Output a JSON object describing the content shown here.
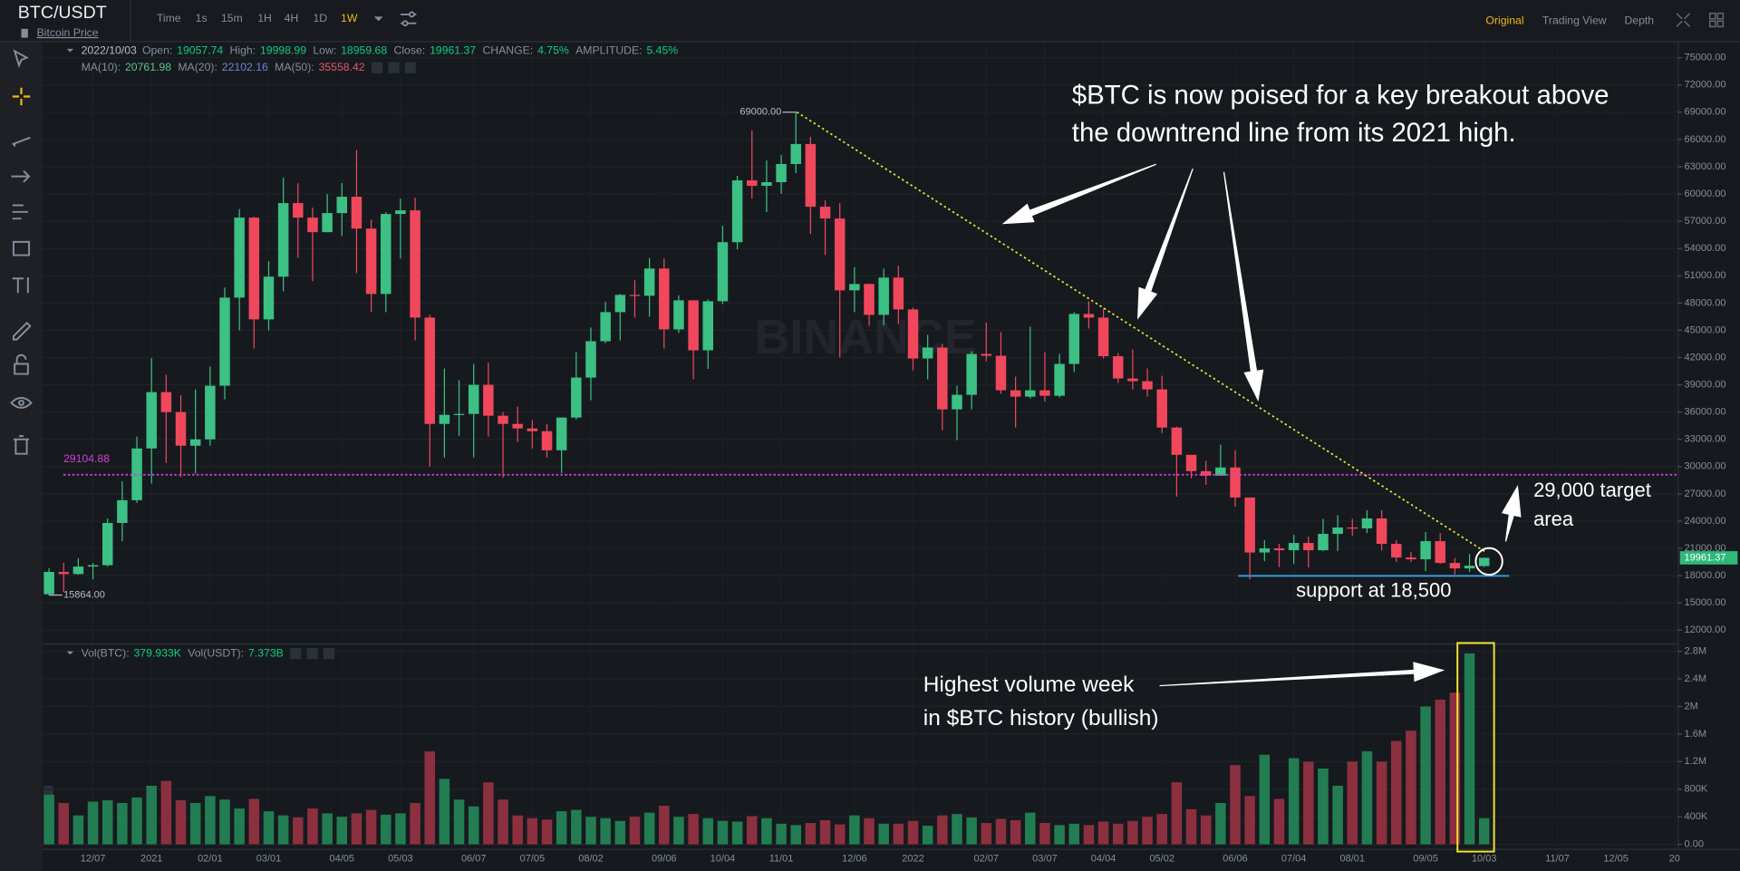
{
  "header": {
    "symbol": "BTC/USDT",
    "subtitle": "Bitcoin Price",
    "intervals": [
      "Time",
      "1s",
      "15m",
      "1H",
      "4H",
      "1D",
      "1W"
    ],
    "active_interval": 6,
    "views": [
      "Original",
      "Trading View",
      "Depth"
    ],
    "active_view": 0
  },
  "info": {
    "date": "2022/10/03",
    "fields": [
      {
        "label": "Open:",
        "value": "19057.74"
      },
      {
        "label": "High:",
        "value": "19998.99"
      },
      {
        "label": "Low:",
        "value": "18959.68"
      },
      {
        "label": "Close:",
        "value": "19961.37"
      },
      {
        "label": "CHANGE:",
        "value": "4.75%"
      },
      {
        "label": "AMPLITUDE:",
        "value": "5.45%"
      }
    ],
    "ma": [
      {
        "label": "MA(10):",
        "value": "20761.98",
        "color": "#5fc28a"
      },
      {
        "label": "MA(20):",
        "value": "22102.16",
        "color": "#6f85d6"
      },
      {
        "label": "MA(50):",
        "value": "35558.42",
        "color": "#e4566d"
      }
    ],
    "vol": [
      {
        "label": "Vol(BTC):",
        "value": "379.933K"
      },
      {
        "label": "Vol(USDT):",
        "value": "7.373B"
      }
    ]
  },
  "chart_data": {
    "type": "candlestick",
    "watermark": "BINANCE",
    "categories": [
      null,
      null,
      null,
      "12/07",
      null,
      null,
      null,
      "2021",
      null,
      null,
      null,
      "02/01",
      null,
      null,
      null,
      "03/01",
      null,
      null,
      null,
      null,
      "04/05",
      null,
      null,
      null,
      "05/03",
      null,
      null,
      null,
      null,
      "06/07",
      null,
      null,
      null,
      "07/05",
      null,
      null,
      null,
      "08/02",
      null,
      null,
      null,
      null,
      "09/06",
      null,
      null,
      null,
      "10/04",
      null,
      null,
      null,
      "11/01",
      null,
      null,
      null,
      null,
      "12/06",
      null,
      null,
      null,
      "2022",
      null,
      null,
      null,
      null,
      "02/07",
      null,
      null,
      null,
      "03/07",
      null,
      null,
      null,
      "04/04",
      null,
      null,
      null,
      "05/02",
      null,
      null,
      null,
      null,
      "06/06",
      null,
      null,
      null,
      "07/04",
      null,
      null,
      null,
      "08/01",
      null,
      null,
      null,
      null,
      "09/05",
      null,
      null,
      null,
      "10/03",
      null,
      null,
      null,
      null,
      "11/07",
      null,
      null,
      null,
      "12/05",
      null,
      null,
      null,
      "20"
    ],
    "open": [
      15957,
      18414,
      18178,
      19000,
      19150,
      23800,
      26300,
      32000,
      38200,
      36000,
      32300,
      33000,
      38900,
      48600,
      57400,
      46200,
      50900,
      59000,
      57400,
      55800,
      57900,
      59700,
      56200,
      49000,
      57800,
      58200,
      46400,
      34700,
      35700,
      35800,
      39000,
      35600,
      34700,
      34200,
      33900,
      31800,
      35400,
      39800,
      43800,
      47000,
      48900,
      48800,
      51800,
      45100,
      48300,
      42800,
      48200,
      54700,
      61500,
      60900,
      61300,
      63300,
      65500,
      58600,
      57300,
      49400,
      50100,
      46700,
      50800,
      47300,
      41900,
      43100,
      36300,
      37900,
      42400,
      42200,
      38400,
      37700,
      38400,
      37800,
      41300,
      46800,
      46400,
      42150,
      39700,
      39400,
      38500,
      34300,
      31300,
      29500,
      29000,
      29900,
      26600,
      20550,
      21000,
      20800,
      21600,
      20800,
      22600,
      23300,
      23200,
      24300,
      21500,
      20000,
      19800,
      21800,
      19400,
      18800,
      19057.74,
      null,
      null,
      null,
      null,
      null,
      null,
      null,
      null,
      null,
      null,
      null,
      null,
      null
    ],
    "high": [
      18815,
      19418,
      19915,
      19400,
      24300,
      28400,
      33300,
      41950,
      40100,
      37850,
      38500,
      41000,
      49700,
      58350,
      57500,
      52600,
      61800,
      61180,
      58500,
      60000,
      61200,
      64850,
      57200,
      58000,
      59500,
      59600,
      46700,
      40800,
      39500,
      41300,
      41450,
      36000,
      36600,
      35100,
      34700,
      35400,
      42600,
      45300,
      48150,
      49000,
      50500,
      52950,
      52900,
      48850,
      48300,
      48400,
      56500,
      62000,
      67000,
      63700,
      64300,
      69000,
      66300,
      59300,
      59000,
      51950,
      50150,
      51800,
      52100,
      47500,
      44500,
      43500,
      38900,
      42700,
      45850,
      44800,
      39900,
      45400,
      42600,
      42400,
      47000,
      48200,
      47400,
      42500,
      42900,
      40800,
      40000,
      34400,
      31300,
      30650,
      32400,
      31800,
      26600,
      21900,
      21500,
      22500,
      22300,
      24250,
      24650,
      24250,
      25200,
      25200,
      21900,
      20600,
      22800,
      22700,
      19950,
      20400,
      19998.99,
      null,
      null,
      null,
      null,
      null,
      null,
      null,
      null,
      null,
      null,
      null,
      null,
      null
    ],
    "low": [
      15864,
      16200,
      18100,
      17600,
      19000,
      21800,
      26000,
      28130,
      30400,
      28850,
      29240,
      32300,
      37400,
      45000,
      43000,
      45000,
      49300,
      53000,
      50400,
      55800,
      55400,
      51300,
      47000,
      47000,
      52900,
      43900,
      30000,
      31000,
      33400,
      31000,
      33300,
      28800,
      32700,
      32000,
      31000,
      29300,
      35200,
      37300,
      43600,
      43900,
      46400,
      46500,
      43000,
      44700,
      39600,
      40750,
      47900,
      53900,
      59500,
      58000,
      60000,
      62300,
      55600,
      53300,
      42000,
      47000,
      45500,
      45550,
      45700,
      40600,
      39600,
      34000,
      32900,
      36300,
      41600,
      38000,
      34300,
      37500,
      37150,
      37600,
      40400,
      45200,
      41900,
      39200,
      38500,
      37700,
      33700,
      26700,
      28700,
      28000,
      29000,
      25600,
      17600,
      19600,
      18950,
      19300,
      18900,
      20700,
      20700,
      22400,
      22700,
      20760,
      19500,
      19500,
      18500,
      19300,
      18130,
      18400,
      18959.68,
      null,
      null,
      null,
      null,
      null,
      null,
      null,
      null,
      null,
      null,
      null,
      null,
      null
    ],
    "close": [
      18414,
      18178,
      19000,
      19150,
      23800,
      26300,
      32000,
      38200,
      36000,
      32300,
      33000,
      38900,
      48600,
      57400,
      46200,
      50900,
      59000,
      57400,
      55800,
      57900,
      59700,
      56200,
      49000,
      57800,
      58200,
      46400,
      34700,
      35700,
      35800,
      39000,
      35600,
      34700,
      34200,
      33900,
      31800,
      35400,
      39800,
      43800,
      47000,
      48900,
      48800,
      51800,
      45100,
      48300,
      42800,
      48200,
      54700,
      61500,
      60900,
      61300,
      63300,
      65500,
      58600,
      57300,
      49400,
      50100,
      46700,
      50800,
      47300,
      41900,
      43100,
      36300,
      37900,
      42400,
      42200,
      38400,
      37700,
      38400,
      37800,
      41300,
      46800,
      46400,
      42150,
      39700,
      39400,
      38500,
      34300,
      31300,
      29500,
      29000,
      29900,
      26600,
      20550,
      21000,
      20800,
      21600,
      20800,
      22600,
      23300,
      23200,
      24300,
      21500,
      20000,
      19800,
      21800,
      19400,
      18800,
      19100,
      19961.37,
      null,
      null,
      null,
      null,
      null,
      null,
      null,
      null,
      null,
      null,
      null,
      null,
      null
    ],
    "up_color": "#3cc083",
    "down_color": "#f0475c",
    "price_tag_color": "#2fb878",
    "ylim": [
      10530,
      76710
    ],
    "yticks": [
      {
        "value": 12000,
        "label": "12000.00"
      },
      {
        "value": 15000,
        "label": "15000.00"
      },
      {
        "value": 18000,
        "label": "18000.00"
      },
      {
        "value": 21000,
        "label": "21000.00"
      },
      {
        "value": 24000,
        "label": "24000.00"
      },
      {
        "value": 27000,
        "label": "27000.00"
      },
      {
        "value": 30000,
        "label": "30000.00"
      },
      {
        "value": 33000,
        "label": "33000.00"
      },
      {
        "value": 36000,
        "label": "36000.00"
      },
      {
        "value": 39000,
        "label": "39000.00"
      },
      {
        "value": 42000,
        "label": "42000.00"
      },
      {
        "value": 45000,
        "label": "45000.00"
      },
      {
        "value": 48000,
        "label": "48000.00"
      },
      {
        "value": 51000,
        "label": "51000.00"
      },
      {
        "value": 54000,
        "label": "54000.00"
      },
      {
        "value": 57000,
        "label": "57000.00"
      },
      {
        "value": 60000,
        "label": "60000.00"
      },
      {
        "value": 63000,
        "label": "63000.00"
      },
      {
        "value": 66000,
        "label": "66000.00"
      },
      {
        "value": 69000,
        "label": "69000.00"
      },
      {
        "value": 72000,
        "label": "72000.00"
      },
      {
        "value": 75000,
        "label": "75000.00"
      }
    ],
    "grid": true,
    "high_label": {
      "value": 69000,
      "label": "69000.00"
    },
    "low_label": {
      "value": 15864,
      "label": "15864.00"
    },
    "hline": {
      "value": 29104.88,
      "color": "#d23ddb"
    },
    "volume": {
      "values": [
        720000,
        600000,
        420000,
        620000,
        640000,
        600000,
        680000,
        850000,
        920000,
        640000,
        600000,
        700000,
        650000,
        520000,
        660000,
        480000,
        420000,
        390000,
        520000,
        450000,
        400000,
        450000,
        500000,
        430000,
        450000,
        600000,
        1350000,
        950000,
        650000,
        550000,
        900000,
        650000,
        420000,
        380000,
        360000,
        480000,
        500000,
        400000,
        380000,
        340000,
        400000,
        460000,
        560000,
        400000,
        440000,
        380000,
        340000,
        330000,
        410000,
        380000,
        300000,
        280000,
        310000,
        350000,
        290000,
        420000,
        380000,
        300000,
        300000,
        340000,
        270000,
        420000,
        440000,
        390000,
        310000,
        370000,
        350000,
        460000,
        310000,
        280000,
        300000,
        280000,
        330000,
        300000,
        340000,
        400000,
        440000,
        900000,
        510000,
        420000,
        600000,
        1150000,
        700000,
        1300000,
        660000,
        1250000,
        1200000,
        1100000,
        850000,
        1200000,
        1350000,
        1200000,
        1500000,
        1650000,
        2000000,
        2100000,
        2200000,
        2770000,
        379933,
        null,
        null,
        null,
        null,
        null,
        null,
        null,
        null,
        null,
        null,
        null,
        null,
        null
      ],
      "up_color": "#227d52",
      "down_color": "#8c3040",
      "ylim": [
        -64400,
        2896600
      ],
      "yticks": [
        {
          "value": 0,
          "label": "0.00"
        },
        {
          "value": 400000,
          "label": "400K"
        },
        {
          "value": 800000,
          "label": "800K"
        },
        {
          "value": 1200000,
          "label": "1.2M"
        },
        {
          "value": 1600000,
          "label": "1.6M"
        },
        {
          "value": 2000000,
          "label": "2M"
        },
        {
          "value": 2400000,
          "label": "2.4M"
        },
        {
          "value": 2800000,
          "label": "2.8M"
        }
      ]
    },
    "annotations": {
      "breakout": [
        "$BTC is now poised for a key breakout above",
        "the downtrend line from its 2021 high."
      ],
      "target": [
        "29,000 target",
        "area"
      ],
      "support": "support at 18,500",
      "volume": [
        "Highest volume week",
        "in $BTC history (bullish)"
      ]
    }
  }
}
